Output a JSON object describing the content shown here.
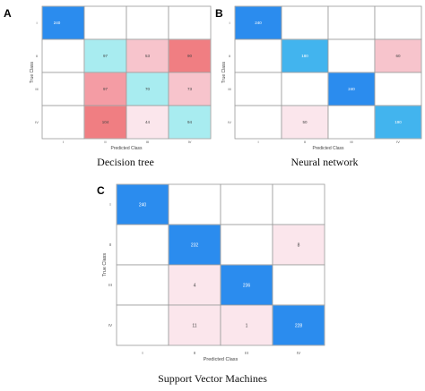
{
  "colors": {
    "grid_border": "#9a9a9a",
    "blue_strong": "#2b8cee",
    "blue_mid": "#42b4ee",
    "cyan_light": "#a8ecf0",
    "pink_light": "#fbe6ec",
    "pink_mid": "#f7c4cc",
    "pink_strong": "#f49ca4",
    "red_strong": "#f07e82"
  },
  "chart_data": [
    {
      "panel": "A",
      "type": "heatmap",
      "caption": "Decision tree",
      "xlabel": "Predicted Class",
      "ylabel": "True Class",
      "x_categories": [
        "I",
        "II",
        "III",
        "IV"
      ],
      "y_categories": [
        "I",
        "II",
        "III",
        "IV"
      ],
      "cells": [
        {
          "row": 0,
          "col": 0,
          "label": "240",
          "color": "blue_strong"
        },
        {
          "row": 1,
          "col": 1,
          "label": "97",
          "color": "cyan_light"
        },
        {
          "row": 1,
          "col": 2,
          "label": "53",
          "color": "pink_mid"
        },
        {
          "row": 1,
          "col": 3,
          "label": "90",
          "color": "red_strong"
        },
        {
          "row": 2,
          "col": 1,
          "label": "97",
          "color": "pink_strong"
        },
        {
          "row": 2,
          "col": 2,
          "label": "70",
          "color": "cyan_light"
        },
        {
          "row": 2,
          "col": 3,
          "label": "73",
          "color": "pink_mid"
        },
        {
          "row": 3,
          "col": 1,
          "label": "104",
          "color": "red_strong"
        },
        {
          "row": 3,
          "col": 2,
          "label": "44",
          "color": "pink_light"
        },
        {
          "row": 3,
          "col": 3,
          "label": "94",
          "color": "cyan_light"
        }
      ]
    },
    {
      "panel": "B",
      "type": "heatmap",
      "caption": "Neural network",
      "xlabel": "Predicted Class",
      "ylabel": "True Class",
      "x_categories": [
        "I",
        "II",
        "III",
        "IV"
      ],
      "y_categories": [
        "I",
        "II",
        "III",
        "IV"
      ],
      "cells": [
        {
          "row": 0,
          "col": 0,
          "label": "240",
          "color": "blue_strong"
        },
        {
          "row": 1,
          "col": 1,
          "label": "180",
          "color": "blue_mid"
        },
        {
          "row": 1,
          "col": 3,
          "label": "60",
          "color": "pink_mid"
        },
        {
          "row": 2,
          "col": 2,
          "label": "240",
          "color": "blue_strong"
        },
        {
          "row": 3,
          "col": 1,
          "label": "50",
          "color": "pink_light"
        },
        {
          "row": 3,
          "col": 3,
          "label": "190",
          "color": "blue_mid"
        }
      ]
    },
    {
      "panel": "C",
      "type": "heatmap",
      "caption": "Support Vector Machines",
      "xlabel": "Predicted Class",
      "ylabel": "True Class",
      "x_categories": [
        "I",
        "II",
        "III",
        "IV"
      ],
      "y_categories": [
        "I",
        "II",
        "III",
        "IV"
      ],
      "cells": [
        {
          "row": 0,
          "col": 0,
          "label": "240",
          "color": "blue_strong"
        },
        {
          "row": 1,
          "col": 1,
          "label": "232",
          "color": "blue_strong"
        },
        {
          "row": 1,
          "col": 3,
          "label": "8",
          "color": "pink_light"
        },
        {
          "row": 2,
          "col": 1,
          "label": "4",
          "color": "pink_light"
        },
        {
          "row": 2,
          "col": 2,
          "label": "236",
          "color": "blue_strong"
        },
        {
          "row": 3,
          "col": 1,
          "label": "11",
          "color": "pink_light"
        },
        {
          "row": 3,
          "col": 2,
          "label": "1",
          "color": "pink_light"
        },
        {
          "row": 3,
          "col": 3,
          "label": "228",
          "color": "blue_strong"
        }
      ]
    }
  ]
}
